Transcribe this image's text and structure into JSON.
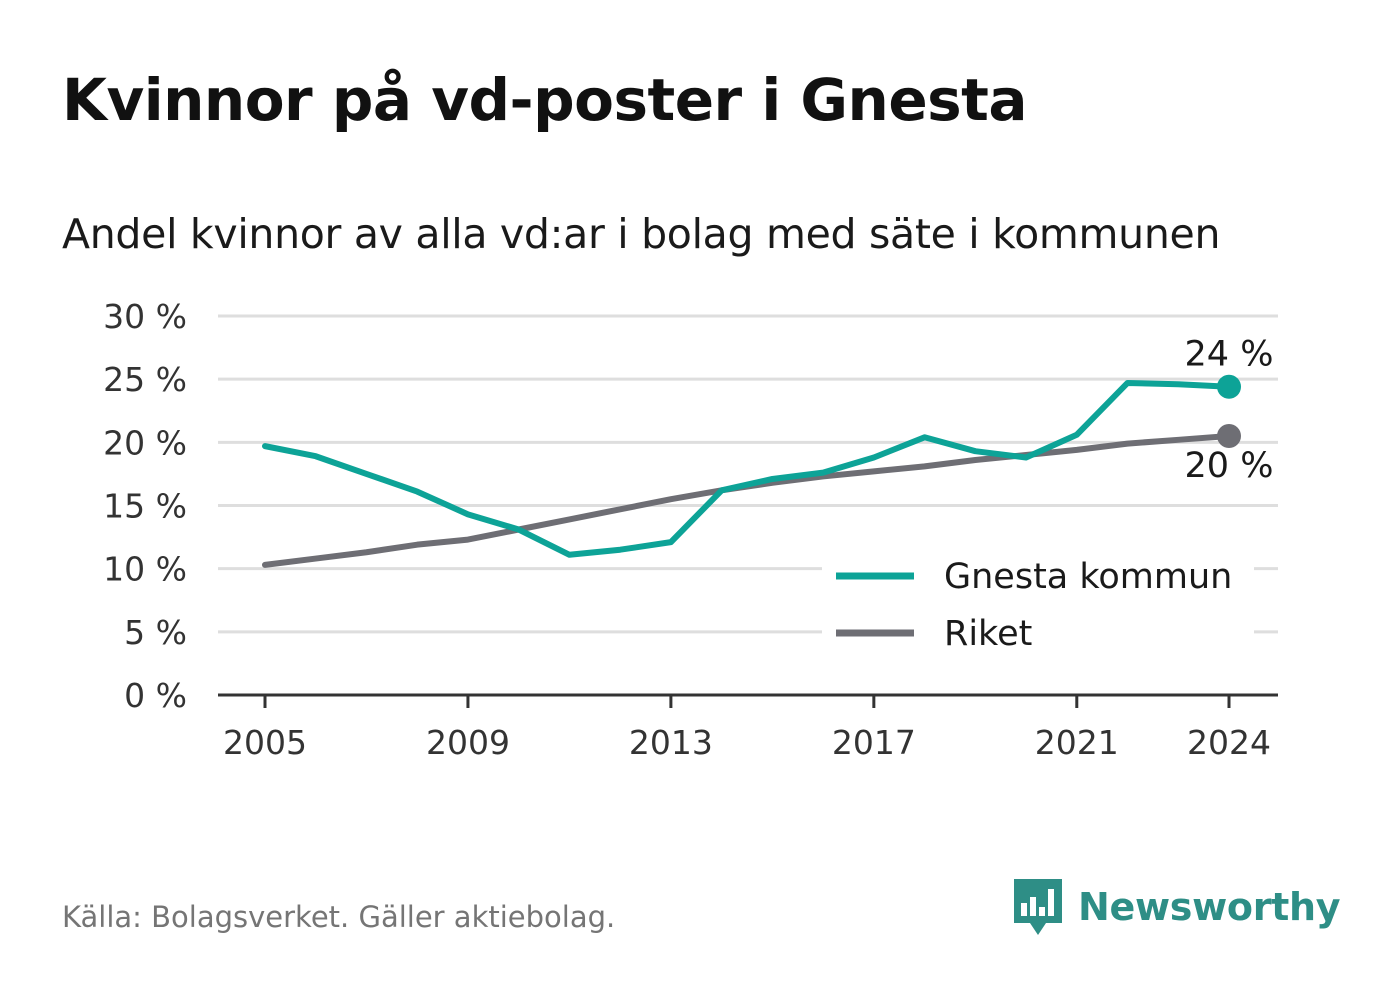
{
  "title": "Kvinnor på vd-poster i Gnesta",
  "subtitle": "Andel kvinnor av alla vd:ar i bolag med säte i kommunen",
  "footer": "Källa: Bolagsverket. Gäller aktiebolag.",
  "brand": "Newsworthy",
  "colors": {
    "gnesta": "#0da397",
    "riket": "#6e6e74",
    "grid": "#dedede",
    "axis": "#333333",
    "brand": "#2e8e86"
  },
  "chart_data": {
    "type": "line",
    "x": [
      2005,
      2006,
      2007,
      2008,
      2009,
      2010,
      2011,
      2012,
      2013,
      2014,
      2015,
      2016,
      2017,
      2018,
      2019,
      2020,
      2021,
      2022,
      2023,
      2024
    ],
    "series": [
      {
        "name": "Gnesta kommun",
        "values": [
          19.7,
          18.9,
          17.5,
          16.1,
          14.3,
          13.1,
          11.1,
          11.5,
          12.1,
          16.2,
          17.1,
          17.6,
          18.8,
          20.4,
          19.3,
          18.8,
          20.6,
          24.7,
          24.6,
          24.4
        ]
      },
      {
        "name": "Riket",
        "values": [
          10.3,
          10.8,
          11.3,
          11.9,
          12.3,
          13.1,
          13.9,
          14.7,
          15.5,
          16.2,
          16.8,
          17.3,
          17.7,
          18.1,
          18.6,
          19.0,
          19.4,
          19.9,
          20.2,
          20.5
        ]
      }
    ],
    "xticks": [
      "2005",
      "2009",
      "2013",
      "2017",
      "2021",
      "2024"
    ],
    "ytick_labels": [
      "0 %",
      "5 %",
      "10 %",
      "15 %",
      "20 %",
      "25 %",
      "30 %"
    ],
    "ylim": [
      0,
      30
    ],
    "end_labels": [
      "24 %",
      "20 %"
    ],
    "grid": true,
    "legend": "bottom-right"
  }
}
